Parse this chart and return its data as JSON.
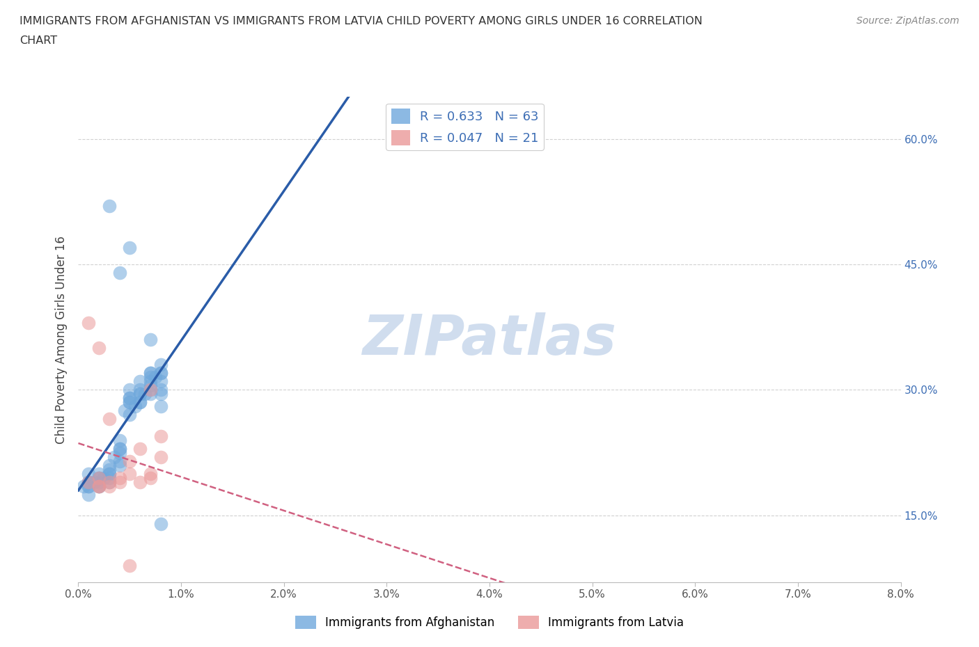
{
  "title_line1": "IMMIGRANTS FROM AFGHANISTAN VS IMMIGRANTS FROM LATVIA CHILD POVERTY AMONG GIRLS UNDER 16 CORRELATION",
  "title_line2": "CHART",
  "source": "Source: ZipAtlas.com",
  "ylabel": "Child Poverty Among Girls Under 16",
  "xlim": [
    0.0,
    0.08
  ],
  "ylim": [
    0.07,
    0.65
  ],
  "xticks": [
    0.0,
    0.01,
    0.02,
    0.03,
    0.04,
    0.05,
    0.06,
    0.07,
    0.08
  ],
  "xticklabels": [
    "0.0%",
    "1.0%",
    "2.0%",
    "3.0%",
    "4.0%",
    "5.0%",
    "6.0%",
    "7.0%",
    "8.0%"
  ],
  "yticks": [
    0.15,
    0.3,
    0.45,
    0.6
  ],
  "yticklabels": [
    "15.0%",
    "30.0%",
    "45.0%",
    "60.0%"
  ],
  "color_afghanistan": "#6fa8dc",
  "color_latvia": "#ea9999",
  "color_af_line": "#2a5ca8",
  "color_lv_line": "#d06080",
  "R_afghanistan": 0.633,
  "N_afghanistan": 63,
  "R_latvia": 0.047,
  "N_latvia": 21,
  "legend_label_afghanistan": "Immigrants from Afghanistan",
  "legend_label_latvia": "Immigrants from Latvia",
  "watermark": "ZIPatlas",
  "watermark_color": "#c8d8ec",
  "grid_color": "#cccccc",
  "afghanistan_x": [
    0.001,
    0.002,
    0.003,
    0.004,
    0.005,
    0.006,
    0.007,
    0.008,
    0.001,
    0.002,
    0.003,
    0.004,
    0.005,
    0.006,
    0.007,
    0.008,
    0.001,
    0.002,
    0.003,
    0.004,
    0.005,
    0.006,
    0.007,
    0.008,
    0.0005,
    0.0015,
    0.0025,
    0.0035,
    0.0045,
    0.0055,
    0.0065,
    0.0075,
    0.001,
    0.002,
    0.003,
    0.004,
    0.005,
    0.006,
    0.007,
    0.008,
    0.001,
    0.002,
    0.003,
    0.004,
    0.005,
    0.006,
    0.007,
    0.008,
    0.001,
    0.002,
    0.003,
    0.004,
    0.005,
    0.006,
    0.007,
    0.008,
    0.003,
    0.004,
    0.005,
    0.007,
    0.007,
    0.008,
    0.008
  ],
  "afghanistan_y": [
    0.19,
    0.185,
    0.195,
    0.215,
    0.27,
    0.285,
    0.295,
    0.295,
    0.2,
    0.19,
    0.2,
    0.225,
    0.29,
    0.295,
    0.305,
    0.31,
    0.185,
    0.2,
    0.205,
    0.23,
    0.285,
    0.3,
    0.32,
    0.32,
    0.185,
    0.19,
    0.195,
    0.22,
    0.275,
    0.28,
    0.295,
    0.315,
    0.19,
    0.195,
    0.21,
    0.24,
    0.29,
    0.31,
    0.315,
    0.3,
    0.185,
    0.195,
    0.2,
    0.23,
    0.3,
    0.285,
    0.32,
    0.33,
    0.175,
    0.185,
    0.19,
    0.21,
    0.285,
    0.295,
    0.31,
    0.32,
    0.52,
    0.44,
    0.47,
    0.36,
    0.3,
    0.14,
    0.28
  ],
  "latvia_x": [
    0.002,
    0.003,
    0.004,
    0.005,
    0.006,
    0.007,
    0.008,
    0.001,
    0.002,
    0.003,
    0.004,
    0.005,
    0.006,
    0.007,
    0.008,
    0.001,
    0.002,
    0.003,
    0.005,
    0.007,
    0.002
  ],
  "latvia_y": [
    0.185,
    0.185,
    0.19,
    0.2,
    0.19,
    0.195,
    0.22,
    0.19,
    0.195,
    0.19,
    0.195,
    0.215,
    0.23,
    0.2,
    0.245,
    0.38,
    0.35,
    0.265,
    0.09,
    0.3,
    0.185
  ]
}
